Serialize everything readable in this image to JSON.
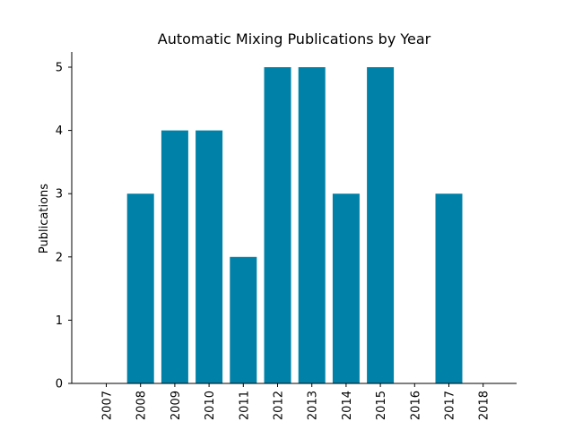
{
  "chart_data": {
    "type": "bar",
    "title": "Automatic Mixing Publications by Year",
    "xlabel": "",
    "ylabel": "Publications",
    "categories": [
      "2007",
      "2008",
      "2009",
      "2010",
      "2011",
      "2012",
      "2013",
      "2014",
      "2015",
      "2016",
      "2017",
      "2018"
    ],
    "values": [
      0,
      3,
      4,
      4,
      2,
      5,
      5,
      3,
      5,
      0,
      3,
      0
    ],
    "ylim": [
      0,
      5
    ],
    "yticks": [
      "0",
      "1",
      "2",
      "3",
      "4",
      "5"
    ],
    "grid": false,
    "bar_color": "#0081a7"
  }
}
